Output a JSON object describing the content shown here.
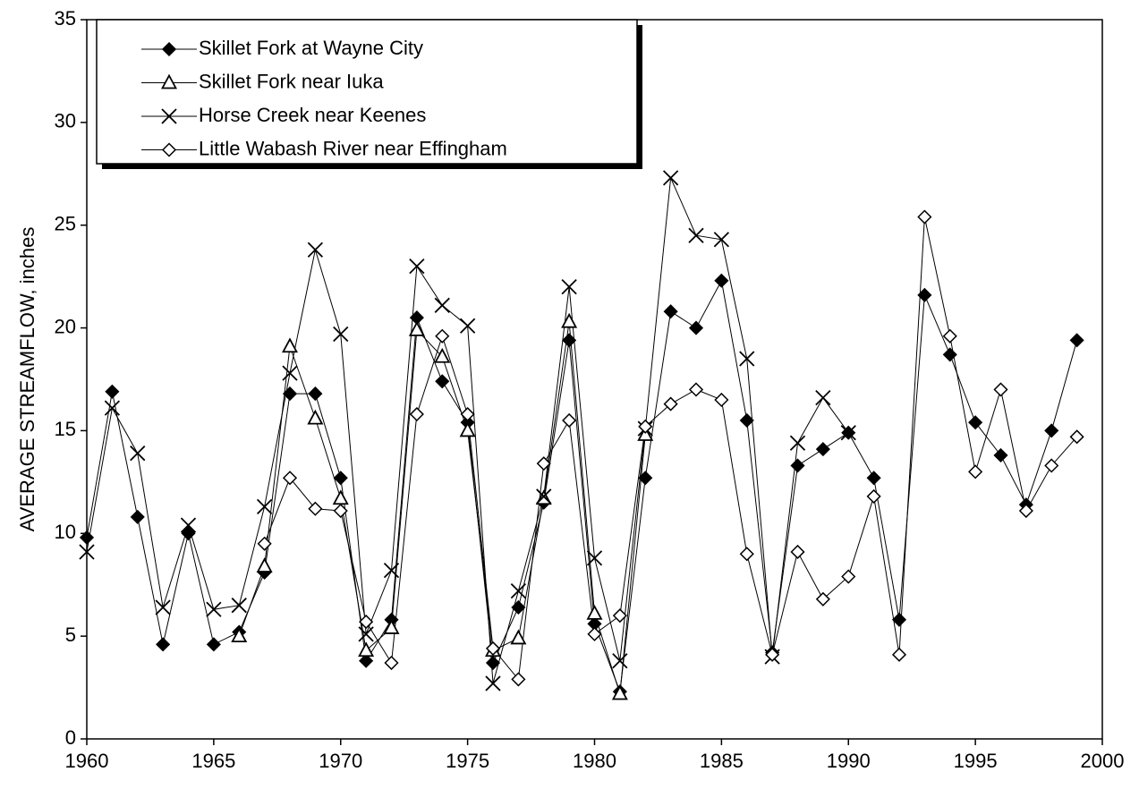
{
  "chart_data": {
    "type": "line",
    "y_label": "AVERAGE STREAMFLOW, inches",
    "x": [
      1960,
      1961,
      1962,
      1963,
      1964,
      1965,
      1966,
      1967,
      1968,
      1969,
      1970,
      1971,
      1972,
      1973,
      1974,
      1975,
      1976,
      1977,
      1978,
      1979,
      1980,
      1981,
      1982,
      1983,
      1984,
      1985,
      1986,
      1987,
      1988,
      1989,
      1990,
      1991,
      1992,
      1993,
      1994,
      1995,
      1996,
      1997,
      1998,
      1999
    ],
    "series": [
      {
        "name": "Skillet Fork at Wayne City",
        "color": "#000000",
        "marker": "diamond-filled",
        "values": [
          9.8,
          16.9,
          10.8,
          4.6,
          10.0,
          4.6,
          5.2,
          8.1,
          16.8,
          16.8,
          12.7,
          3.8,
          5.8,
          20.5,
          17.4,
          15.4,
          3.7,
          6.4,
          11.5,
          19.4,
          5.6,
          2.3,
          12.7,
          20.8,
          20.0,
          22.3,
          15.5,
          4.2,
          13.3,
          14.1,
          14.9,
          12.7,
          5.8,
          21.6,
          18.7,
          15.4,
          13.8,
          11.4,
          15.0,
          19.4
        ]
      },
      {
        "name": "Skillet Fork near Iuka",
        "color": "#000000",
        "marker": "triangle-open",
        "values": [
          null,
          null,
          null,
          null,
          null,
          null,
          5.0,
          8.4,
          19.1,
          15.6,
          11.7,
          4.3,
          5.4,
          19.9,
          18.6,
          15.0,
          4.3,
          4.9,
          11.7,
          20.3,
          6.1,
          2.2,
          14.8,
          null,
          null,
          null,
          null,
          null,
          null,
          null,
          null,
          null,
          null,
          null,
          null,
          null,
          null,
          null,
          null,
          null
        ]
      },
      {
        "name": "Horse Creek near Keenes",
        "color": "#000000",
        "marker": "cross",
        "values": [
          9.1,
          16.1,
          13.9,
          6.4,
          10.4,
          6.3,
          6.5,
          11.3,
          17.8,
          23.8,
          19.7,
          5.1,
          8.2,
          23.0,
          21.1,
          20.1,
          2.7,
          7.2,
          11.8,
          22.0,
          8.8,
          3.8,
          15.1,
          27.3,
          24.5,
          24.3,
          18.5,
          4.0,
          14.4,
          16.6,
          14.9,
          null,
          null,
          null,
          null,
          null,
          null,
          null,
          null,
          null
        ]
      },
      {
        "name": "Little Wabash River near Effingham",
        "color": "#000000",
        "marker": "diamond-open",
        "values": [
          null,
          null,
          null,
          null,
          null,
          null,
          null,
          9.5,
          12.7,
          11.2,
          11.1,
          5.7,
          3.7,
          15.8,
          19.6,
          15.8,
          4.4,
          2.9,
          13.4,
          15.5,
          5.1,
          6.0,
          15.2,
          16.3,
          17.0,
          16.5,
          9.0,
          4.1,
          9.1,
          6.8,
          7.9,
          11.8,
          4.1,
          25.4,
          19.6,
          13.0,
          17.0,
          11.1,
          13.3,
          14.7
        ]
      }
    ],
    "xlim": [
      1960,
      2000
    ],
    "xticks": [
      1960,
      1965,
      1970,
      1975,
      1980,
      1985,
      1990,
      1995,
      2000
    ],
    "ylim": [
      0,
      35
    ],
    "yticks": [
      0,
      5,
      10,
      15,
      20,
      25,
      30,
      35
    ],
    "legend": "upper-left"
  }
}
